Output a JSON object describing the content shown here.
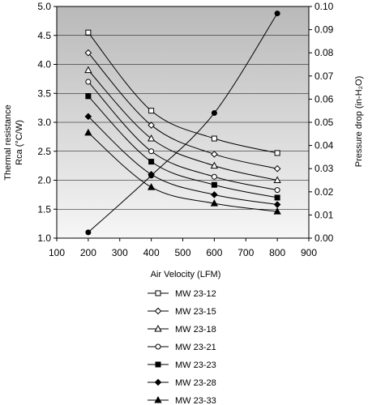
{
  "chart_data": {
    "type": "line",
    "x_label": "Air Velocity (LFM)",
    "y_label_left_line1": "Thermal resistance",
    "y_label_left_line2": "Rca (°C/W)",
    "y_label_right": "Pressure drop (in-H₂O)",
    "x_ticks": [
      "100",
      "200",
      "300",
      "400",
      "500",
      "600",
      "700",
      "800",
      "900"
    ],
    "y_ticks_left": [
      "1.0",
      "1.5",
      "2.0",
      "2.5",
      "3.0",
      "3.5",
      "4.0",
      "4.5",
      "5.0"
    ],
    "y_ticks_right": [
      "0.00",
      "0.01",
      "0.02",
      "0.03",
      "0.04",
      "0.05",
      "0.06",
      "0.07",
      "0.08",
      "0.09",
      "0.10"
    ],
    "xlim": [
      100,
      900
    ],
    "ylim_left": [
      1.0,
      5.0
    ],
    "ylim_right": [
      0.0,
      0.1
    ],
    "legend_position": "below",
    "grid": true,
    "series": [
      {
        "name": "MW 23-12",
        "marker": "square-open",
        "axis": "left",
        "x": [
          200,
          400,
          600,
          800
        ],
        "values": [
          4.55,
          3.2,
          2.72,
          2.47
        ]
      },
      {
        "name": "MW 23-15",
        "marker": "diamond-open",
        "axis": "left",
        "x": [
          200,
          400,
          600,
          800
        ],
        "values": [
          4.2,
          2.95,
          2.45,
          2.2
        ]
      },
      {
        "name": "MW 23-18",
        "marker": "triangle-open",
        "axis": "left",
        "x": [
          200,
          400,
          600,
          800
        ],
        "values": [
          3.9,
          2.72,
          2.25,
          2.0
        ]
      },
      {
        "name": "MW 23-21",
        "marker": "circle-open",
        "axis": "left",
        "x": [
          200,
          400,
          600,
          800
        ],
        "values": [
          3.7,
          2.5,
          2.06,
          1.83
        ]
      },
      {
        "name": "MW 23-23",
        "marker": "square-filled",
        "axis": "left",
        "x": [
          200,
          400,
          600,
          800
        ],
        "values": [
          3.45,
          2.32,
          1.92,
          1.7
        ]
      },
      {
        "name": "MW 23-28",
        "marker": "diamond-filled",
        "axis": "left",
        "x": [
          200,
          400,
          600,
          800
        ],
        "values": [
          3.1,
          2.1,
          1.75,
          1.58
        ]
      },
      {
        "name": "MW 23-33",
        "marker": "triangle-filled",
        "axis": "left",
        "x": [
          200,
          400,
          600,
          800
        ],
        "values": [
          2.82,
          1.88,
          1.6,
          1.46
        ]
      }
    ],
    "pressure_drop": {
      "marker": "circle-filled",
      "axis": "right",
      "x": [
        200,
        400,
        600,
        800
      ],
      "values": [
        0.0025,
        0.027,
        0.054,
        0.097
      ]
    },
    "colors": {
      "plot_top": "#b9b9b9",
      "plot_bottom": "#f6f6f6",
      "line": "#000000",
      "grid": "#000000"
    }
  }
}
